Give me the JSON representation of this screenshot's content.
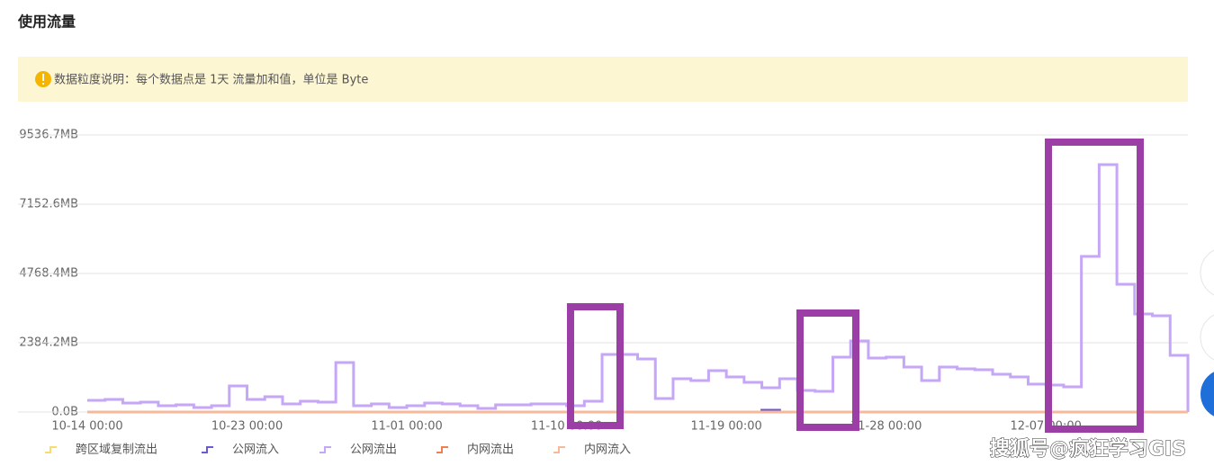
{
  "header": {
    "title": "使用流量"
  },
  "notice": {
    "text": "数据粒度说明：每个数据点是 1天 流量加和值，单位是 Byte"
  },
  "watermark": "搜狐号@疯狂学习GIS",
  "chart_data": {
    "type": "step-line",
    "categories": [
      "10-14 00:00",
      null,
      null,
      null,
      null,
      null,
      null,
      null,
      null,
      "10-23 00:00",
      null,
      null,
      null,
      null,
      null,
      null,
      null,
      null,
      "11-01 00:00",
      null,
      null,
      null,
      null,
      null,
      null,
      null,
      null,
      "11-10 00:00",
      null,
      null,
      null,
      null,
      null,
      null,
      null,
      null,
      "11-19 00:00",
      null,
      null,
      null,
      null,
      null,
      null,
      null,
      null,
      "11-28 00:00",
      null,
      null,
      null,
      null,
      null,
      null,
      null,
      null,
      "12-07 00:00",
      null,
      null,
      null,
      null,
      null,
      null,
      null
    ],
    "ylim": [
      0,
      9536.7
    ],
    "yticks": [
      {
        "value": 0,
        "label": "0.0B"
      },
      {
        "value": 2384.2,
        "label": "2384.2MB"
      },
      {
        "value": 4768.4,
        "label": "4768.4MB"
      },
      {
        "value": 7152.6,
        "label": "7152.6MB"
      },
      {
        "value": 9536.7,
        "label": "9536.7MB"
      }
    ],
    "grid": true,
    "legend": "bottom",
    "series": [
      {
        "name": "跨区域复制流出",
        "color": "#f7dc6f",
        "values": [
          0,
          0,
          0,
          0,
          0,
          0,
          0,
          0,
          0,
          0,
          0,
          0,
          0,
          0,
          0,
          0,
          0,
          0,
          0,
          0,
          0,
          0,
          0,
          0,
          0,
          0,
          0,
          0,
          0,
          0,
          0,
          0,
          0,
          0,
          0,
          0,
          0,
          0,
          0,
          0,
          0,
          0,
          0,
          0,
          0,
          0,
          0,
          0,
          0,
          0,
          0,
          0,
          0,
          0,
          0,
          0,
          0,
          0,
          0,
          0,
          0,
          0
        ]
      },
      {
        "name": "公网流入",
        "color": "#6b5ad8",
        "values": [
          0,
          0,
          0,
          0,
          0,
          0,
          0,
          0,
          0,
          0,
          0,
          0,
          0,
          0,
          0,
          0,
          0,
          0,
          0,
          0,
          0,
          0,
          0,
          0,
          0,
          0,
          0,
          0,
          0,
          0,
          0,
          0,
          0,
          0,
          0,
          0,
          0,
          0,
          60,
          0,
          0,
          0,
          0,
          0,
          0,
          0,
          0,
          0,
          0,
          0,
          0,
          0,
          0,
          0,
          0,
          0,
          0,
          0,
          0,
          0,
          0,
          0
        ]
      },
      {
        "name": "公网流出",
        "color": "#c6a6f7",
        "values": [
          402,
          434,
          310,
          341,
          217,
          248,
          155,
          217,
          898,
          434,
          526,
          279,
          372,
          341,
          1703,
          217,
          279,
          155,
          217,
          310,
          279,
          217,
          124,
          248,
          248,
          279,
          279,
          217,
          372,
          1981,
          1981,
          1827,
          464,
          1146,
          1084,
          1424,
          1207,
          1022,
          836,
          1146,
          743,
          712,
          1889,
          2446,
          1858,
          1889,
          1548,
          1084,
          1548,
          1486,
          1455,
          1300,
          1207,
          960,
          929,
          867,
          5356,
          8514,
          4396,
          3375,
          3313,
          1950
        ]
      },
      {
        "name": "内网流出",
        "color": "#f08050",
        "values": [
          0,
          0,
          0,
          0,
          0,
          0,
          0,
          0,
          0,
          0,
          0,
          0,
          0,
          0,
          0,
          0,
          0,
          0,
          0,
          0,
          0,
          0,
          0,
          0,
          0,
          0,
          0,
          0,
          0,
          0,
          0,
          0,
          0,
          0,
          0,
          0,
          0,
          0,
          0,
          0,
          0,
          0,
          0,
          0,
          0,
          0,
          0,
          0,
          0,
          0,
          0,
          0,
          0,
          0,
          0,
          0,
          0,
          0,
          0,
          0,
          0,
          0
        ]
      },
      {
        "name": "内网流入",
        "color": "#f8b89a",
        "values": [
          0,
          0,
          0,
          0,
          0,
          0,
          0,
          0,
          0,
          0,
          0,
          0,
          0,
          0,
          0,
          0,
          0,
          0,
          0,
          0,
          0,
          0,
          0,
          0,
          0,
          0,
          0,
          0,
          0,
          0,
          0,
          0,
          0,
          0,
          0,
          0,
          0,
          0,
          0,
          0,
          0,
          0,
          0,
          0,
          0,
          0,
          0,
          0,
          0,
          0,
          0,
          0,
          0,
          0,
          0,
          0,
          0,
          0,
          0,
          0,
          0,
          0
        ]
      }
    ]
  }
}
